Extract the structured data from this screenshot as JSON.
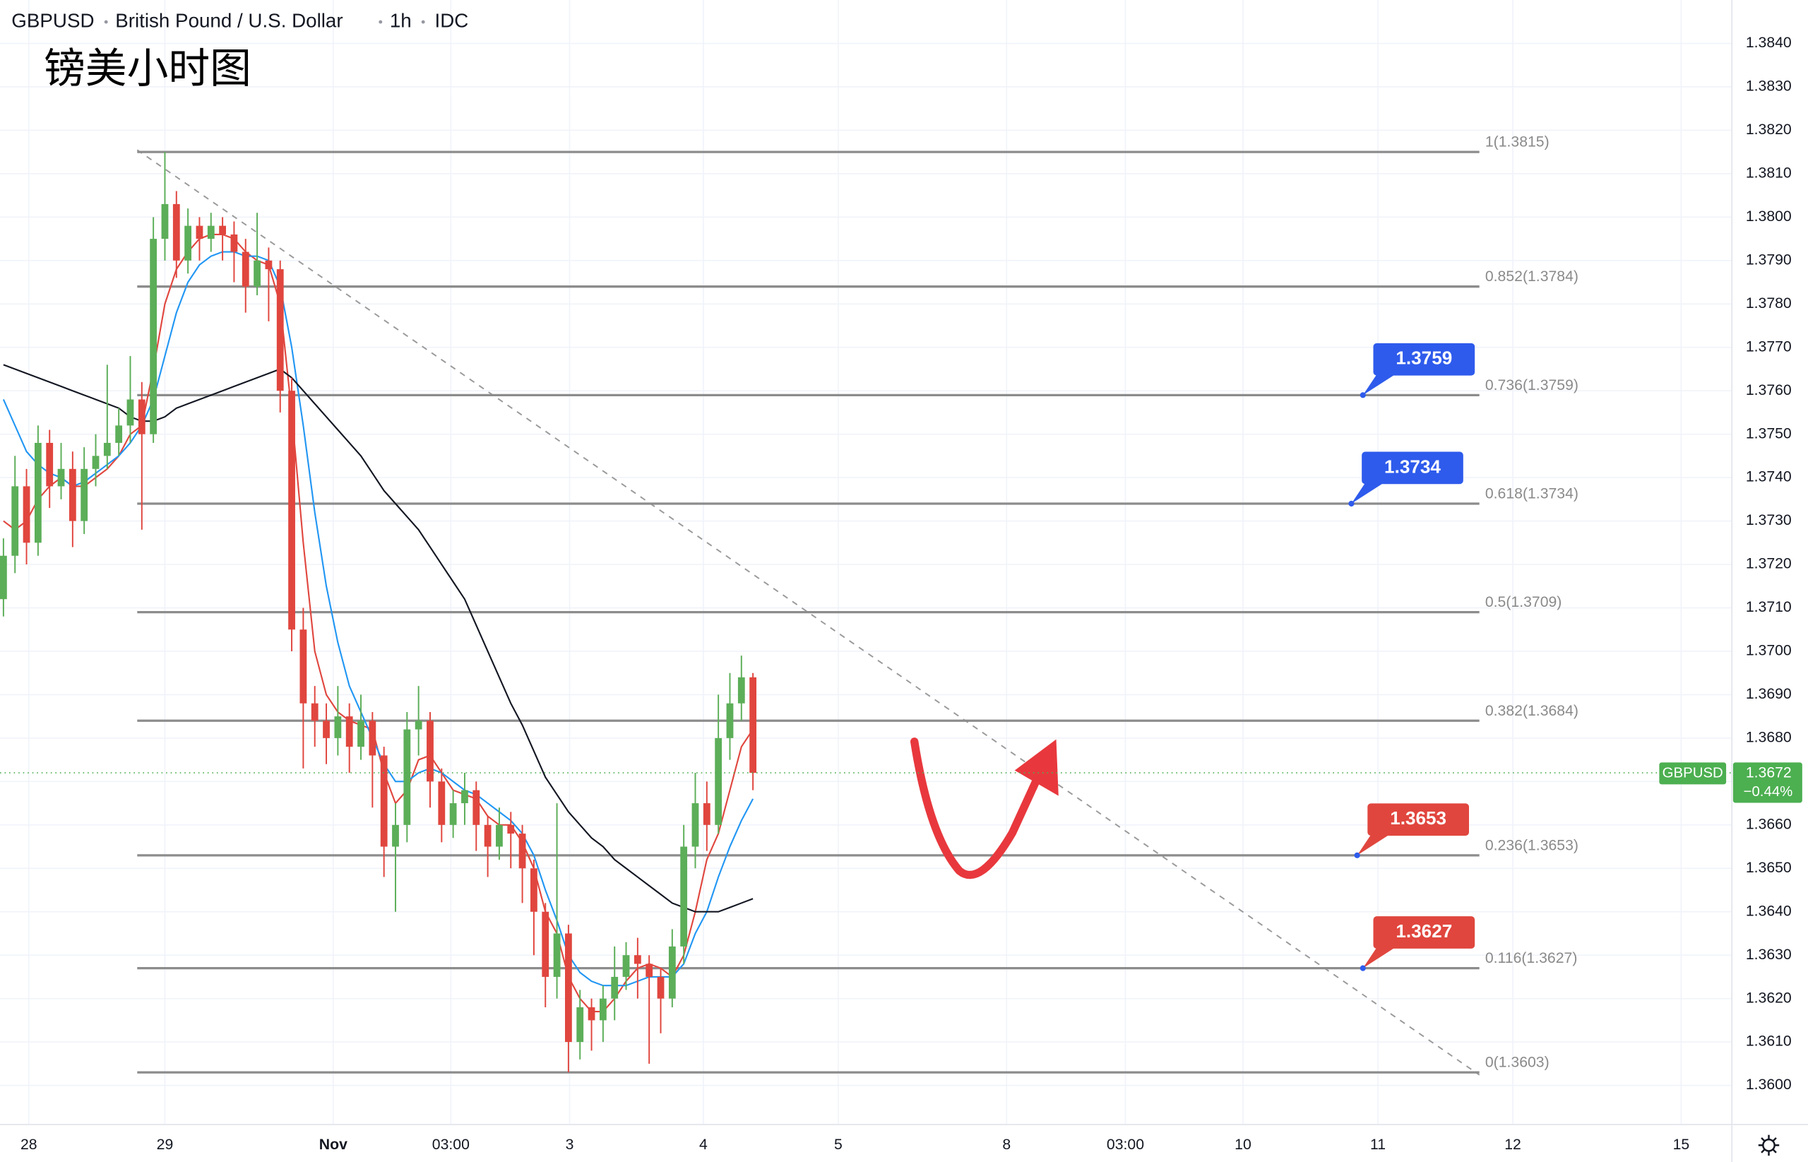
{
  "chart_data": {
    "type": "candlestick",
    "symbol": "GBPUSD",
    "description": "British Pound / U.S. Dollar",
    "interval": "1h",
    "source": "IDC",
    "annotation": "镑美小时图",
    "up_color": "#5cae58",
    "down_color": "#e0463e",
    "open": [
      1.3712,
      1.3722,
      1.3738,
      1.3725,
      1.3748,
      1.3738,
      1.3742,
      1.373,
      1.3742,
      1.3745,
      1.3748,
      1.3752,
      1.3758,
      1.375,
      1.3795,
      1.3803,
      1.379,
      1.3798,
      1.3795,
      1.3798,
      1.3796,
      1.3792,
      1.3784,
      1.379,
      1.3788,
      1.376,
      1.3705,
      1.3688,
      1.3684,
      1.368,
      1.3685,
      1.3678,
      1.3684,
      1.3676,
      1.3655,
      1.366,
      1.3682,
      1.3684,
      1.367,
      1.366,
      1.3665,
      1.3668,
      1.366,
      1.3655,
      1.366,
      1.3658,
      1.365,
      1.364,
      1.3625,
      1.3635,
      1.361,
      1.3618,
      1.3615,
      1.362,
      1.3625,
      1.363,
      1.3628,
      1.3625,
      1.362,
      1.3632,
      1.3655,
      1.3665,
      1.366,
      1.368,
      1.3688,
      1.3694
    ],
    "high": [
      1.3726,
      1.3745,
      1.3742,
      1.3752,
      1.3751,
      1.3748,
      1.3746,
      1.3747,
      1.375,
      1.3766,
      1.3756,
      1.3768,
      1.3762,
      1.38,
      1.3815,
      1.3806,
      1.3802,
      1.38,
      1.3801,
      1.38,
      1.3799,
      1.3795,
      1.3801,
      1.3793,
      1.379,
      1.3763,
      1.371,
      1.3692,
      1.3688,
      1.3692,
      1.3688,
      1.369,
      1.3686,
      1.3678,
      1.3665,
      1.3686,
      1.3692,
      1.3686,
      1.3673,
      1.3668,
      1.3672,
      1.367,
      1.3662,
      1.3664,
      1.3663,
      1.366,
      1.3652,
      1.3642,
      1.3665,
      1.3637,
      1.3622,
      1.362,
      1.3623,
      1.3632,
      1.3633,
      1.3634,
      1.363,
      1.3627,
      1.3636,
      1.366,
      1.3672,
      1.367,
      1.369,
      1.3695,
      1.3699,
      1.3695
    ],
    "low": [
      1.3708,
      1.3718,
      1.372,
      1.3722,
      1.3733,
      1.3735,
      1.3724,
      1.3727,
      1.3738,
      1.3742,
      1.3745,
      1.3748,
      1.3728,
      1.3748,
      1.379,
      1.3786,
      1.3787,
      1.379,
      1.3792,
      1.379,
      1.3785,
      1.3778,
      1.3782,
      1.3776,
      1.3755,
      1.37,
      1.3673,
      1.3678,
      1.3674,
      1.3676,
      1.3672,
      1.3675,
      1.3664,
      1.3648,
      1.364,
      1.3656,
      1.3676,
      1.3664,
      1.3656,
      1.3657,
      1.366,
      1.3654,
      1.3648,
      1.3652,
      1.365,
      1.3642,
      1.363,
      1.3618,
      1.362,
      1.3603,
      1.3606,
      1.3608,
      1.361,
      1.3615,
      1.3622,
      1.362,
      1.3605,
      1.3612,
      1.3618,
      1.3628,
      1.365,
      1.3654,
      1.3658,
      1.3675,
      1.3684,
      1.3668
    ],
    "close": [
      1.3722,
      1.3738,
      1.3725,
      1.3748,
      1.3738,
      1.3742,
      1.373,
      1.3742,
      1.3745,
      1.3748,
      1.3752,
      1.3758,
      1.375,
      1.3795,
      1.3803,
      1.379,
      1.3798,
      1.3795,
      1.3798,
      1.3796,
      1.3792,
      1.3784,
      1.379,
      1.3788,
      1.376,
      1.3705,
      1.3688,
      1.3684,
      1.368,
      1.3685,
      1.3678,
      1.3684,
      1.3676,
      1.3655,
      1.366,
      1.3682,
      1.3684,
      1.367,
      1.366,
      1.3665,
      1.3668,
      1.366,
      1.3655,
      1.366,
      1.3658,
      1.365,
      1.364,
      1.3625,
      1.3635,
      1.361,
      1.3618,
      1.3615,
      1.362,
      1.3625,
      1.363,
      1.3628,
      1.3625,
      1.362,
      1.3632,
      1.3655,
      1.3665,
      1.366,
      1.368,
      1.3688,
      1.3694,
      1.3672
    ],
    "lines": [
      {
        "color": "#e0463e",
        "values": [
          1.373,
          1.3728,
          1.373,
          1.3735,
          1.3738,
          1.374,
          1.3738,
          1.3738,
          1.374,
          1.3742,
          1.3745,
          1.375,
          1.3752,
          1.3765,
          1.378,
          1.3788,
          1.3792,
          1.3795,
          1.3796,
          1.3796,
          1.3795,
          1.3792,
          1.379,
          1.3789,
          1.378,
          1.3755,
          1.3725,
          1.37,
          1.369,
          1.3686,
          1.3684,
          1.3683,
          1.3682,
          1.3672,
          1.3665,
          1.3668,
          1.3675,
          1.3676,
          1.3672,
          1.3668,
          1.3667,
          1.3666,
          1.3662,
          1.366,
          1.366,
          1.3656,
          1.365,
          1.364,
          1.3635,
          1.3625,
          1.362,
          1.3617,
          1.3617,
          1.362,
          1.3624,
          1.3627,
          1.3628,
          1.3627,
          1.3625,
          1.363,
          1.364,
          1.3652,
          1.3658,
          1.3668,
          1.3678,
          1.3682
        ]
      },
      {
        "color": "#2196f3",
        "values": [
          1.3758,
          1.3752,
          1.3746,
          1.3743,
          1.3741,
          1.374,
          1.3738,
          1.3739,
          1.3741,
          1.3743,
          1.3745,
          1.3748,
          1.3752,
          1.3758,
          1.3768,
          1.3778,
          1.3785,
          1.3789,
          1.3791,
          1.3792,
          1.3792,
          1.3791,
          1.3791,
          1.379,
          1.3784,
          1.377,
          1.3752,
          1.3732,
          1.3715,
          1.3702,
          1.3692,
          1.3686,
          1.368,
          1.3674,
          1.367,
          1.367,
          1.3672,
          1.3673,
          1.3672,
          1.367,
          1.3668,
          1.3667,
          1.3665,
          1.3663,
          1.3661,
          1.3658,
          1.3653,
          1.3645,
          1.3638,
          1.363,
          1.3626,
          1.3624,
          1.3623,
          1.3623,
          1.3623,
          1.3624,
          1.3625,
          1.3625,
          1.3625,
          1.3628,
          1.3635,
          1.364,
          1.3648,
          1.3655,
          1.3661,
          1.3666
        ]
      },
      {
        "color": "#131722",
        "values": [
          1.3766,
          1.3765,
          1.3764,
          1.3763,
          1.3762,
          1.3761,
          1.376,
          1.3759,
          1.3758,
          1.3757,
          1.3756,
          1.3754,
          1.3753,
          1.3753,
          1.3754,
          1.3756,
          1.3757,
          1.3758,
          1.3759,
          1.376,
          1.3761,
          1.3762,
          1.3763,
          1.3764,
          1.3765,
          1.3763,
          1.376,
          1.3757,
          1.3754,
          1.3751,
          1.3748,
          1.3745,
          1.3741,
          1.3737,
          1.3734,
          1.3731,
          1.3728,
          1.3724,
          1.372,
          1.3716,
          1.3712,
          1.3706,
          1.37,
          1.3694,
          1.3688,
          1.3683,
          1.3677,
          1.3671,
          1.3667,
          1.3663,
          1.366,
          1.3657,
          1.3655,
          1.3652,
          1.365,
          1.3648,
          1.3646,
          1.3644,
          1.3642,
          1.3641,
          1.364,
          1.364,
          1.364,
          1.3641,
          1.3642,
          1.3643
        ]
      }
    ],
    "ylim": [
      1.3591,
      1.385
    ],
    "yticks": [
      {
        "value": 1.36,
        "label": "1.3600"
      },
      {
        "value": 1.361,
        "label": "1.3610"
      },
      {
        "value": 1.362,
        "label": "1.3620"
      },
      {
        "value": 1.363,
        "label": "1.3630"
      },
      {
        "value": 1.364,
        "label": "1.3640"
      },
      {
        "value": 1.365,
        "label": "1.3650"
      },
      {
        "value": 1.366,
        "label": "1.3660"
      },
      {
        "value": 1.367,
        "label": "1.3670"
      },
      {
        "value": 1.368,
        "label": "1.3680"
      },
      {
        "value": 1.369,
        "label": "1.3690"
      },
      {
        "value": 1.37,
        "label": "1.3700"
      },
      {
        "value": 1.371,
        "label": "1.3710"
      },
      {
        "value": 1.372,
        "label": "1.3720"
      },
      {
        "value": 1.373,
        "label": "1.3730"
      },
      {
        "value": 1.374,
        "label": "1.3740"
      },
      {
        "value": 1.375,
        "label": "1.3750"
      },
      {
        "value": 1.376,
        "label": "1.3760"
      },
      {
        "value": 1.377,
        "label": "1.3770"
      },
      {
        "value": 1.378,
        "label": "1.3780"
      },
      {
        "value": 1.379,
        "label": "1.3790"
      },
      {
        "value": 1.38,
        "label": "1.3800"
      },
      {
        "value": 1.381,
        "label": "1.3810"
      },
      {
        "value": 1.382,
        "label": "1.3820"
      },
      {
        "value": 1.383,
        "label": "1.3830"
      },
      {
        "value": 1.384,
        "label": "1.3840"
      }
    ],
    "x_tick_labels": [
      "28",
      "29",
      "Nov",
      "03:00",
      "3",
      "4",
      "5",
      "8",
      "03:00",
      "10",
      "11",
      "12",
      "15"
    ],
    "grid": true,
    "fib_levels": [
      {
        "value": 1.3815,
        "label": "1(1.3815)"
      },
      {
        "value": 1.3784,
        "label": "0.852(1.3784)"
      },
      {
        "value": 1.3759,
        "label": "0.736(1.3759)"
      },
      {
        "value": 1.3734,
        "label": "0.618(1.3734)"
      },
      {
        "value": 1.3709,
        "label": "0.5(1.3709)"
      },
      {
        "value": 1.3684,
        "label": "0.382(1.3684)"
      },
      {
        "value": 1.3653,
        "label": "0.236(1.3653)"
      },
      {
        "value": 1.3627,
        "label": "0.116(1.3627)"
      },
      {
        "value": 1.3603,
        "label": "0(1.3603)"
      }
    ],
    "callouts": [
      {
        "value": 1.3759,
        "color": "#2e5bec"
      },
      {
        "value": 1.3734,
        "color": "#2e5bec"
      },
      {
        "value": 1.3653,
        "color": "#e0463e"
      },
      {
        "value": 1.3627,
        "color": "#e0463e"
      }
    ],
    "last_price": {
      "symbol": "GBPUSD",
      "value": 1.3672,
      "change": {
        "value": -0.44,
        "label": "−0.44%"
      },
      "color": "#4caf50"
    }
  }
}
